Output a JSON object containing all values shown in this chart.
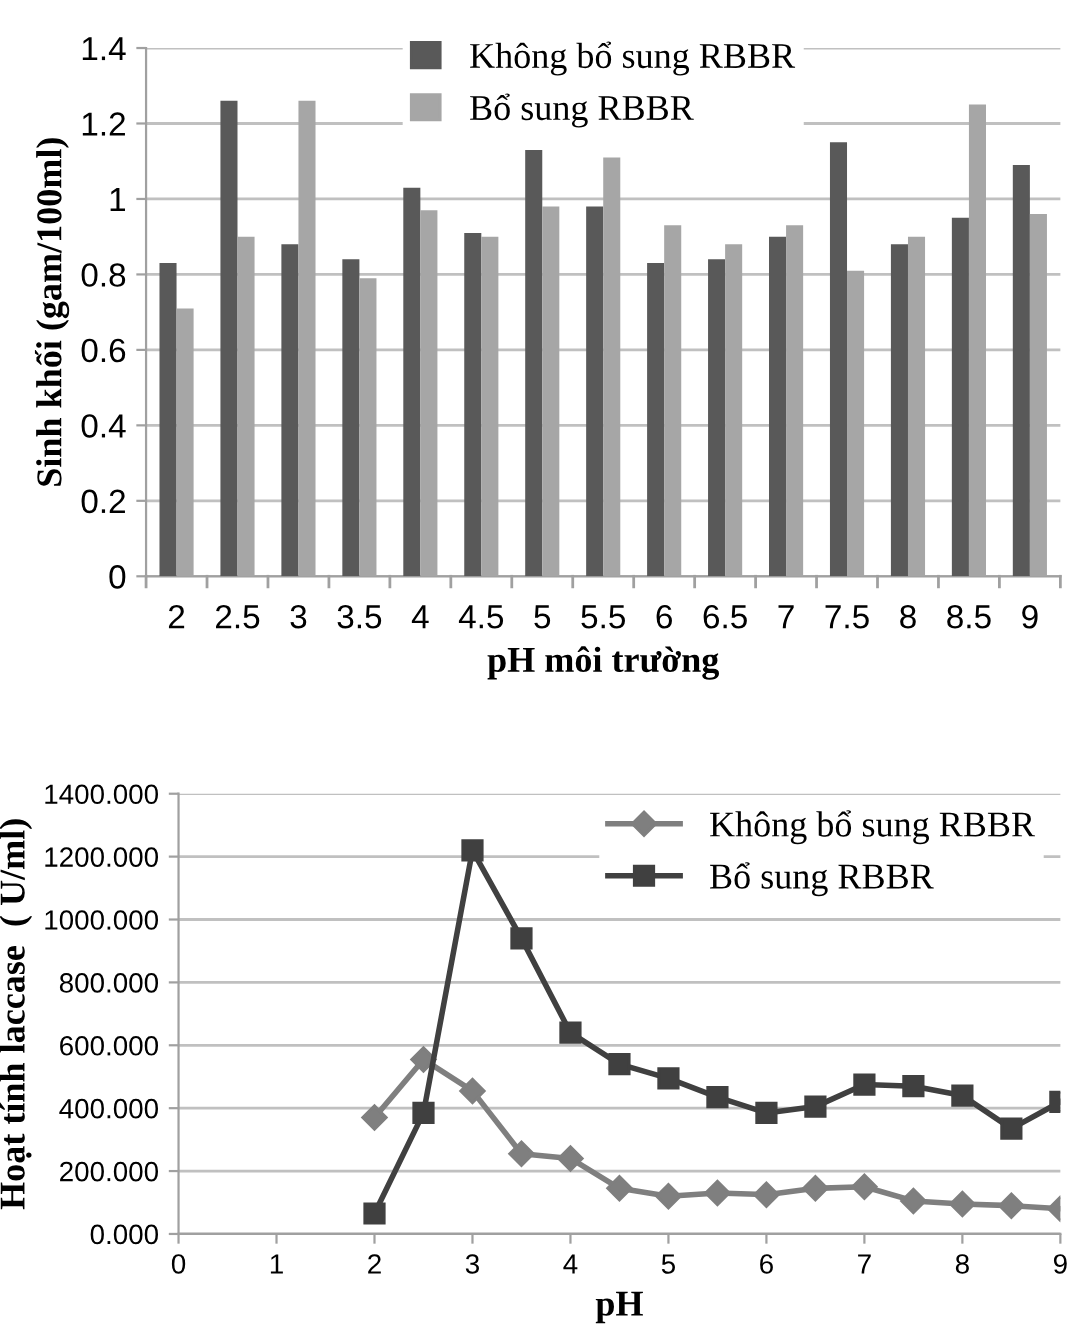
{
  "chart_data": [
    {
      "type": "bar",
      "xlabel": "pH môi trường",
      "ylabel": "Sinh khối (gam/100ml)",
      "categories": [
        "2",
        "2.5",
        "3",
        "3.5",
        "4",
        "4.5",
        "5",
        "5.5",
        "6",
        "6.5",
        "7",
        "7.5",
        "8",
        "8.5",
        "9"
      ],
      "series": [
        {
          "name": "Không bổ sung RBBR",
          "color": "#595959",
          "values": [
            0.83,
            1.26,
            0.88,
            0.84,
            1.03,
            0.91,
            1.13,
            0.98,
            0.83,
            0.84,
            0.9,
            1.15,
            0.88,
            0.95,
            1.09
          ]
        },
        {
          "name": "Bổ sung RBBR",
          "color": "#a6a6a6",
          "values": [
            0.71,
            0.9,
            1.26,
            0.79,
            0.97,
            0.9,
            0.98,
            1.11,
            0.93,
            0.88,
            0.93,
            0.81,
            0.9,
            1.25,
            0.96
          ]
        }
      ],
      "ylim": [
        0,
        1.4
      ],
      "yticks": [
        0,
        0.2,
        0.4,
        0.6,
        0.8,
        1,
        1.2,
        1.4
      ],
      "grid": "y",
      "legend": "top"
    },
    {
      "type": "line",
      "xlabel": "pH",
      "ylabel": "Hoạt tính laccase  ( U/ml)",
      "x": [
        2,
        2.5,
        3,
        3.5,
        4,
        4.5,
        5,
        5.5,
        6,
        6.5,
        7,
        7.5,
        8,
        8.5,
        9
      ],
      "series": [
        {
          "name": "Không bổ sung RBBR",
          "color": "#7f7f7f",
          "marker": "diamond",
          "values": [
            370,
            555,
            455,
            255,
            240,
            145,
            120,
            130,
            125,
            145,
            150,
            105,
            95,
            90,
            80
          ]
        },
        {
          "name": "Bổ sung RBBR",
          "color": "#404040",
          "marker": "square",
          "values": [
            65,
            385,
            1220,
            940,
            640,
            540,
            495,
            435,
            385,
            405,
            475,
            470,
            440,
            335,
            420
          ]
        }
      ],
      "xlim": [
        0,
        9
      ],
      "xticks": [
        0,
        1,
        2,
        3,
        4,
        5,
        6,
        7,
        8,
        9
      ],
      "ylim": [
        0,
        1400
      ],
      "yticks": [
        {
          "value": 0,
          "label": "0.000"
        },
        {
          "value": 200,
          "label": "200.000"
        },
        {
          "value": 400,
          "label": "400.000"
        },
        {
          "value": 600,
          "label": "600.000"
        },
        {
          "value": 800,
          "label": "800.000"
        },
        {
          "value": 1000,
          "label": "1000.000"
        },
        {
          "value": 1200,
          "label": "1200.000"
        },
        {
          "value": 1400,
          "label": "1400.000"
        }
      ],
      "grid": "y",
      "legend": "top right",
      "line_style": "solid"
    }
  ]
}
